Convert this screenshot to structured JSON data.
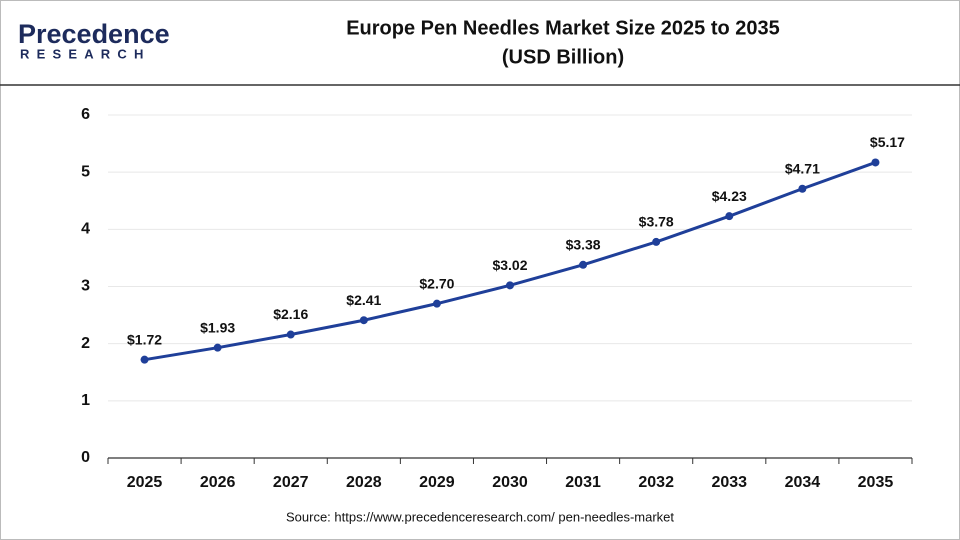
{
  "brand": {
    "name": "Precedence",
    "tagline": "RESEARCH"
  },
  "chart_data": {
    "type": "line",
    "title": "Europe Pen Needles Market Size 2025 to 2035",
    "subtitle": "(USD Billion)",
    "categories": [
      "2025",
      "2026",
      "2027",
      "2028",
      "2029",
      "2030",
      "2031",
      "2032",
      "2033",
      "2034",
      "2035"
    ],
    "values": [
      1.72,
      1.93,
      2.16,
      2.41,
      2.7,
      3.02,
      3.38,
      3.78,
      4.23,
      4.71,
      5.17
    ],
    "value_labels": [
      "$1.72",
      "$1.93",
      "$2.16",
      "$2.41",
      "$2.70",
      "$3.02",
      "$3.38",
      "$3.78",
      "$4.23",
      "$4.71",
      "$5.17"
    ],
    "color": "#1f3f99",
    "ylim": [
      0,
      6
    ],
    "yticks": [
      0,
      1,
      2,
      3,
      4,
      5,
      6
    ],
    "grid": true,
    "source": "Source: https://www.precedenceresearch.com/ pen-needles-market"
  }
}
